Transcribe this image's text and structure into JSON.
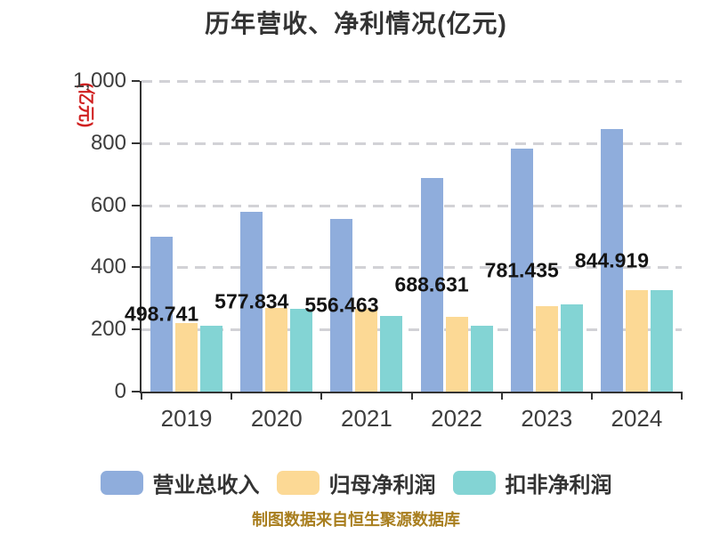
{
  "chart_data": {
    "type": "bar",
    "title": "历年营收、净利情况(亿元)",
    "y_unit": "(亿元)",
    "categories": [
      "2019",
      "2020",
      "2021",
      "2022",
      "2023",
      "2024"
    ],
    "series": [
      {
        "name": "营业总收入",
        "key": "revenue",
        "color": "#8FADDC",
        "values": [
          498.741,
          577.834,
          556.463,
          688.631,
          781.435,
          844.919
        ],
        "show_labels": true
      },
      {
        "name": "归母净利润",
        "key": "net-profit",
        "color": "#FCD995",
        "values": [
          220,
          268,
          266,
          241,
          276,
          327
        ]
      },
      {
        "name": "扣非净利润",
        "key": "deducted-net-profit",
        "color": "#83D4D4",
        "values": [
          212,
          266,
          244,
          213,
          280,
          328
        ]
      }
    ],
    "ylim": [
      0,
      1000
    ],
    "y_ticks": [
      "1,000",
      "800",
      "600",
      "400",
      "200",
      "0"
    ],
    "grid": "horizontal-dashed",
    "legend_position": "bottom"
  },
  "footer": {
    "caption": "制图数据来自恒生聚源数据库"
  },
  "colors": {
    "title": "#333333",
    "axis": "#333333",
    "tick_label": "#3d3d3d",
    "grid": "#d2d2d6",
    "value_label": "#141414",
    "unit_label": "#d02020",
    "caption": "#A87E1E",
    "background": "#ffffff"
  }
}
